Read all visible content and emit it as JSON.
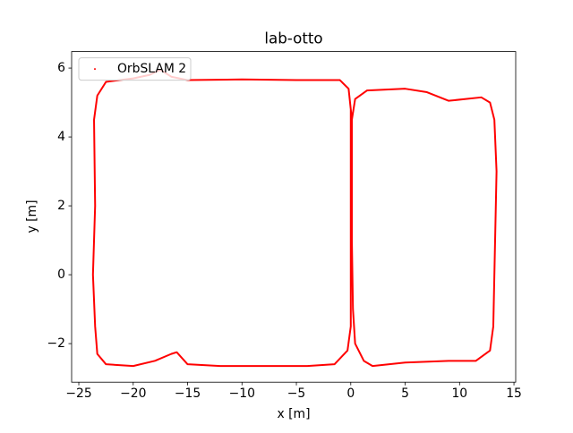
{
  "chart_data": {
    "type": "line",
    "title": "lab-otto",
    "xlabel": "x [m]",
    "ylabel": "y [m]",
    "x": [
      0.0,
      -0.2,
      -1,
      -5,
      -10,
      -15,
      -16.5,
      -17.5,
      -18.5,
      -20,
      -22.5,
      -23.3,
      -23.6,
      -23.5,
      -23.7,
      -23.5,
      -23.3,
      -22.5,
      -20,
      -18,
      -16.5,
      -16,
      -15,
      -12,
      -8,
      -4,
      -1.5,
      -0.3,
      0.0,
      0.0,
      0.0,
      0.0,
      0.1,
      0.4,
      1.5,
      5,
      7,
      9,
      12,
      12.8,
      13.2,
      13.4,
      13.2,
      13.1,
      12.8,
      11.5,
      9,
      5,
      2,
      1.2,
      0.4,
      0.2,
      0.1,
      0.1
    ],
    "series": [
      {
        "name": "OrbSLAM 2",
        "color": "#ff0000",
        "values": [
          4.8,
          5.4,
          5.65,
          5.65,
          5.67,
          5.65,
          5.75,
          5.95,
          5.8,
          5.7,
          5.6,
          5.2,
          4.5,
          2,
          0,
          -1.5,
          -2.3,
          -2.6,
          -2.65,
          -2.5,
          -2.3,
          -2.25,
          -2.6,
          -2.65,
          -2.65,
          -2.65,
          -2.6,
          -2.2,
          -1.5,
          0,
          2,
          4.8,
          4.5,
          5.1,
          5.35,
          5.4,
          5.3,
          5.05,
          5.15,
          5.0,
          4.5,
          3,
          0,
          -1.5,
          -2.2,
          -2.5,
          -2.5,
          -2.55,
          -2.65,
          -2.5,
          -2.0,
          -1,
          1,
          4.5
        ]
      }
    ],
    "xlim": [
      -25.66,
      15.16
    ],
    "ylim": [
      -3.12,
      6.48
    ],
    "xticks": [
      {
        "value": -25,
        "label": "−25"
      },
      {
        "value": -20,
        "label": "−20"
      },
      {
        "value": -15,
        "label": "−15"
      },
      {
        "value": -10,
        "label": "−10"
      },
      {
        "value": -5,
        "label": "−5"
      },
      0,
      5,
      10,
      15
    ],
    "yticks": [
      {
        "value": -2,
        "label": "−2"
      },
      0,
      2,
      4,
      6
    ],
    "legend": "upper left"
  }
}
